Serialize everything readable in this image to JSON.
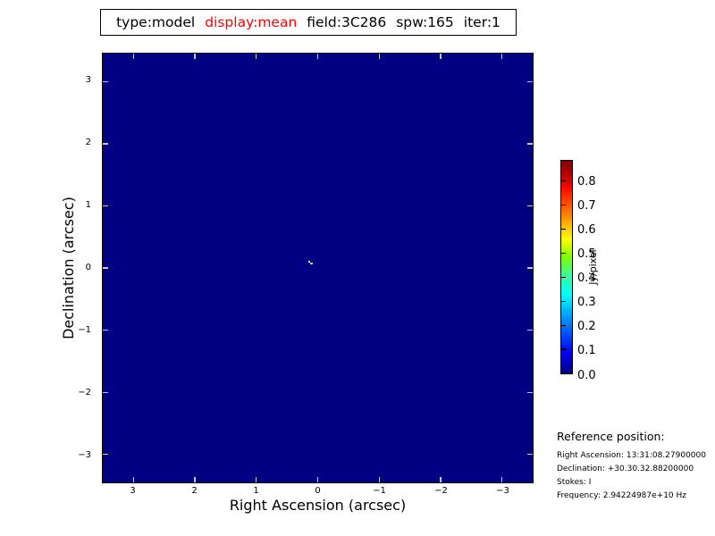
{
  "title_box": {
    "segments": [
      {
        "text": "type:model",
        "color": "#000000"
      },
      {
        "text": "display:mean",
        "color": "#ff0000"
      },
      {
        "text": "field:3C286",
        "color": "#000000"
      },
      {
        "text": "spw:165",
        "color": "#000000"
      },
      {
        "text": "iter:1",
        "color": "#000000"
      }
    ]
  },
  "plot": {
    "xlabel": "Right Ascension (arcsec)",
    "ylabel": "Declination (arcsec)",
    "x_tick_labels": [
      "3",
      "2",
      "1",
      "0",
      "−1",
      "−2",
      "−3"
    ],
    "y_tick_labels": [
      "3",
      "2",
      "1",
      "0",
      "−1",
      "−2",
      "−3"
    ],
    "background_color": "#000083",
    "tick_color": "#c9c9c9",
    "source_marker_colors": [
      "#d9f2f2",
      "#bfe24b"
    ]
  },
  "colorbar": {
    "label": "Jy/pixel",
    "tick_labels": [
      "0.0",
      "0.1",
      "0.2",
      "0.3",
      "0.4",
      "0.5",
      "0.6",
      "0.7",
      "0.8"
    ],
    "tick_values": [
      0.0,
      0.1,
      0.2,
      0.3,
      0.4,
      0.5,
      0.6,
      0.7,
      0.8
    ],
    "max_value": 0.885,
    "colormap": "jet"
  },
  "reference": {
    "heading": "Reference position:",
    "lines": [
      "Right Ascension: 13:31:08.27900000",
      "Declination: +30.30.32.88200000",
      "Stokes: I",
      "Frequency: 2.94224987e+10 Hz"
    ]
  },
  "chart_data": {
    "type": "heatmap",
    "title": "type:model display:mean field:3C286 spw:165 iter:1",
    "xlabel": "Right Ascension (arcsec)",
    "ylabel": "Declination (arcsec)",
    "xlim": [
      3.5,
      -3.5
    ],
    "ylim": [
      -3.45,
      3.45
    ],
    "x_ticks": [
      3,
      2,
      1,
      0,
      -1,
      -2,
      -3
    ],
    "y_ticks": [
      3,
      2,
      1,
      0,
      -1,
      -2,
      -3
    ],
    "grid": false,
    "colormap": "jet",
    "colorbar_label": "Jy/pixel",
    "colorbar_ticks": [
      0.0,
      0.1,
      0.2,
      0.3,
      0.4,
      0.5,
      0.6,
      0.7,
      0.8
    ],
    "colorbar_range": [
      0.0,
      0.885
    ],
    "background_value": 0.0,
    "sources": [
      {
        "ra_arcsec": 0.12,
        "dec_arcsec": 0.08,
        "peak_jy_per_pixel_est": 0.88
      }
    ]
  }
}
